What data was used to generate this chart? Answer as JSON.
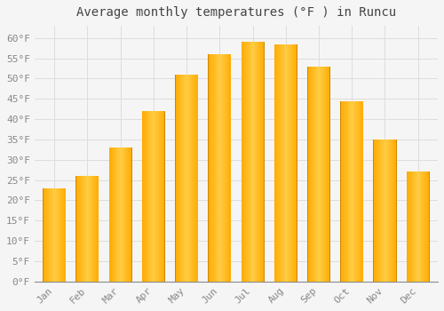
{
  "title": "Average monthly temperatures (°F ) in Runcu",
  "months": [
    "Jan",
    "Feb",
    "Mar",
    "Apr",
    "May",
    "Jun",
    "Jul",
    "Aug",
    "Sep",
    "Oct",
    "Nov",
    "Dec"
  ],
  "values": [
    23,
    26,
    33,
    42,
    51,
    56,
    59,
    58.5,
    53,
    44.5,
    35,
    27
  ],
  "bar_color_light": "#FFD966",
  "bar_color_main": "#FFAA00",
  "bar_color_edge": "#E08000",
  "background_color": "#f5f5f5",
  "plot_bg_color": "#f5f5f5",
  "grid_color": "#dddddd",
  "tick_color": "#888888",
  "title_color": "#444444",
  "label_color": "#888888",
  "ylim": [
    0,
    63
  ],
  "yticks": [
    0,
    5,
    10,
    15,
    20,
    25,
    30,
    35,
    40,
    45,
    50,
    55,
    60
  ],
  "title_fontsize": 10,
  "tick_fontsize": 8,
  "font_family": "monospace",
  "bar_width": 0.7
}
